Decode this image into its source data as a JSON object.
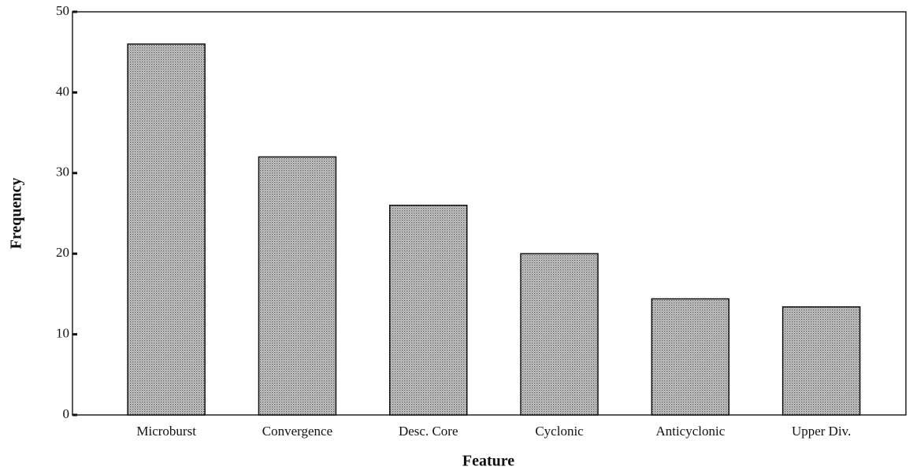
{
  "chart_data": {
    "type": "bar",
    "x_label": "Feature",
    "y_label": "Frequency",
    "categories": [
      "Microburst",
      "Convergence",
      "Desc. Core",
      "Cyclonic",
      "Anticyclonic",
      "Upper Div."
    ],
    "values": [
      46,
      32,
      26,
      20,
      14.4,
      13.4
    ],
    "color": "#b8b8b8",
    "ylim": [
      0,
      50
    ],
    "yticks": [
      0,
      10,
      20,
      30,
      40,
      50
    ],
    "grid": false
  }
}
